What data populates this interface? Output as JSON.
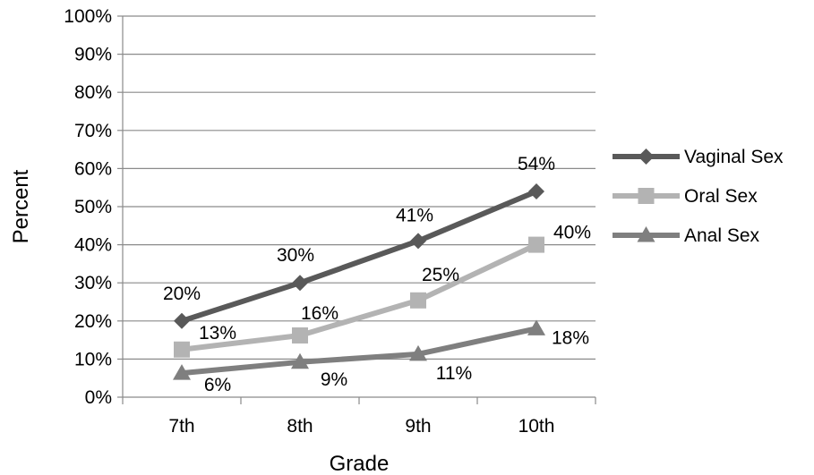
{
  "chart_data": {
    "type": "line",
    "xlabel": "Grade",
    "ylabel": "Percent",
    "categories": [
      "7th",
      "8th",
      "9th",
      "10th"
    ],
    "ylim": [
      0,
      100
    ],
    "ytick_step": 10,
    "y_tick_format": "percent",
    "grid": true,
    "legend_position": "right",
    "series": [
      {
        "name": "Vaginal Sex",
        "values": [
          20,
          30,
          41,
          54
        ],
        "labels": [
          "20%",
          "30%",
          "41%",
          "54%"
        ],
        "color": "#595959",
        "marker": "diamond"
      },
      {
        "name": "Oral Sex",
        "values": [
          12.5,
          16.2,
          25.4,
          40
        ],
        "labels": [
          "13%",
          "16%",
          "25%",
          "40%"
        ],
        "color": "#b3b3b3",
        "marker": "square"
      },
      {
        "name": "Anal Sex",
        "values": [
          6.3,
          9.2,
          11.3,
          18
        ],
        "labels": [
          "6%",
          "9%",
          "11%",
          "18%"
        ],
        "color": "#7f7f7f",
        "marker": "triangle"
      }
    ]
  }
}
